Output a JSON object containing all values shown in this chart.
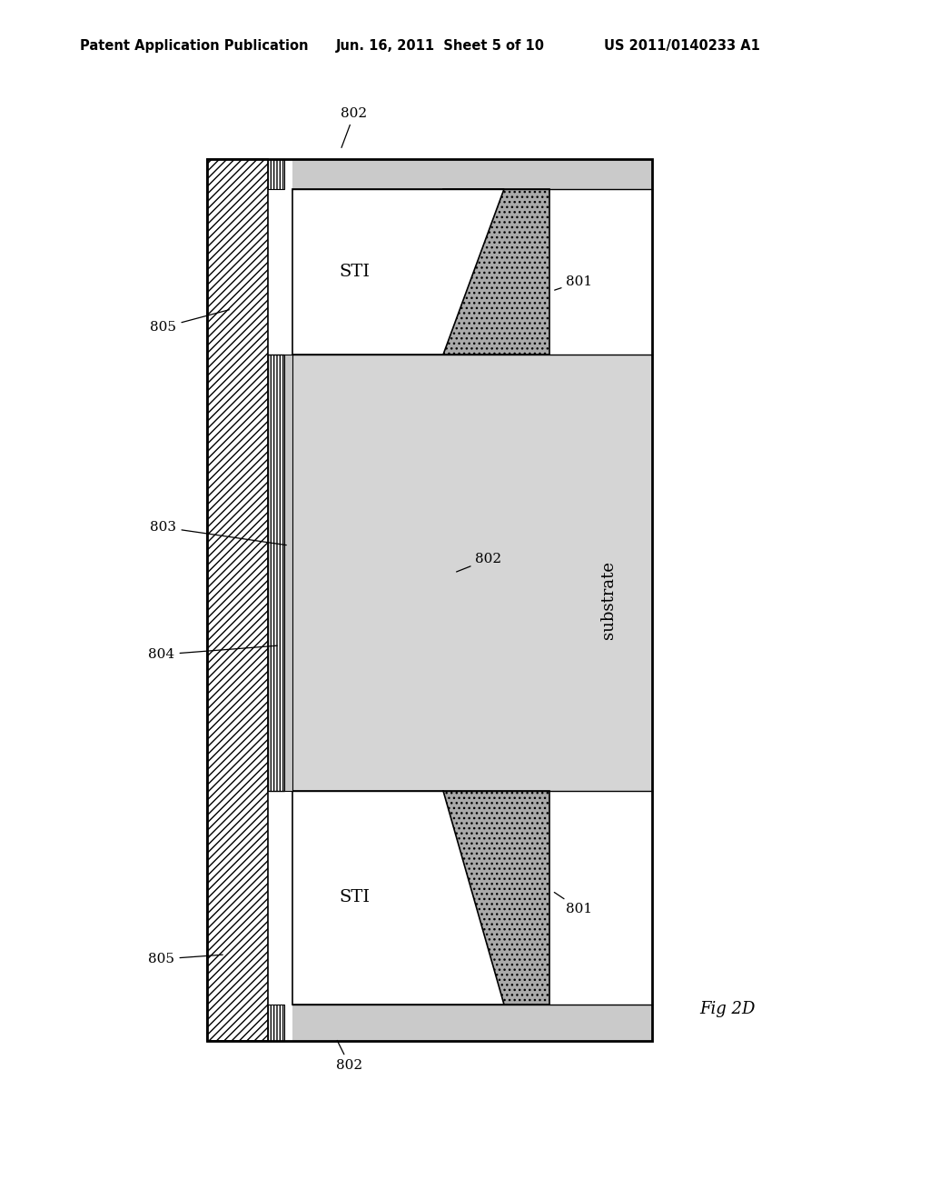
{
  "title_left": "Patent Application Publication",
  "title_mid": "Jun. 16, 2011  Sheet 5 of 10",
  "title_right": "US 2011/0140233 A1",
  "fig_label": "Fig 2D",
  "bg_color": "#ffffff",
  "labels": {
    "802_top": "802",
    "802_mid": "802",
    "802_bot": "802",
    "801_top": "801",
    "801_bot": "801",
    "805_top": "805",
    "805_bot": "805",
    "803": "803",
    "804": "804",
    "STI_top": "STI",
    "STI_bot": "STI",
    "substrate": "substrate"
  },
  "colors": {
    "white": "#ffffff",
    "light_dot": "#d8d8d8",
    "medium_dot": "#b8b8b8",
    "dark_dot": "#999999",
    "black": "#000000"
  }
}
